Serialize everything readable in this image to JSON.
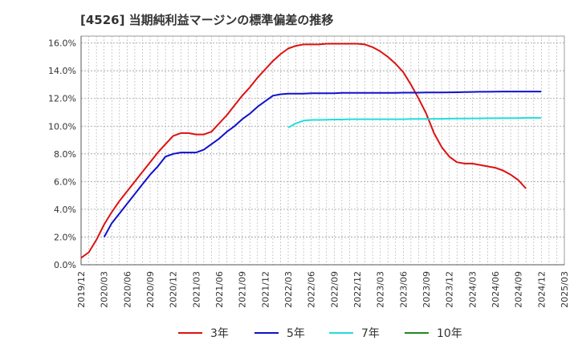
{
  "chart_data": {
    "type": "line",
    "title": "[4526]  当期純利益マージンの標準偏差の推移",
    "xlabel": "",
    "ylabel": "",
    "ylim": [
      0,
      16.5
    ],
    "yticks": [
      "0.0%",
      "2.0%",
      "4.0%",
      "6.0%",
      "8.0%",
      "10.0%",
      "12.0%",
      "14.0%",
      "16.0%"
    ],
    "ytick_values": [
      0,
      2,
      4,
      6,
      8,
      10,
      12,
      14,
      16
    ],
    "xticks": [
      "2019/12",
      "2020/03",
      "2020/06",
      "2020/09",
      "2020/12",
      "2021/03",
      "2021/06",
      "2021/09",
      "2021/12",
      "2022/03",
      "2022/06",
      "2022/09",
      "2022/12",
      "2023/03",
      "2023/06",
      "2023/09",
      "2023/12",
      "2024/03",
      "2024/06",
      "2024/09",
      "2024/12",
      "2025/03"
    ],
    "grid": true,
    "legend_position": "bottom",
    "series": [
      {
        "name": "3年",
        "color": "#dd1111",
        "x": [
          "2019/12",
          "2020/01",
          "2020/02",
          "2020/03",
          "2020/04",
          "2020/05",
          "2020/06",
          "2020/07",
          "2020/08",
          "2020/09",
          "2020/10",
          "2020/11",
          "2020/12",
          "2021/01",
          "2021/02",
          "2021/03",
          "2021/04",
          "2021/05",
          "2021/06",
          "2021/07",
          "2021/08",
          "2021/09",
          "2021/10",
          "2021/11",
          "2021/12",
          "2022/01",
          "2022/02",
          "2022/03",
          "2022/04",
          "2022/05",
          "2022/06",
          "2022/07",
          "2022/08",
          "2022/09",
          "2022/10",
          "2022/11",
          "2022/12",
          "2023/01",
          "2023/02",
          "2023/03",
          "2023/04",
          "2023/05",
          "2023/06",
          "2023/07",
          "2023/08",
          "2023/09",
          "2023/10",
          "2023/11",
          "2023/12",
          "2024/01",
          "2024/02",
          "2024/03",
          "2024/04",
          "2024/05",
          "2024/06",
          "2024/07",
          "2024/08",
          "2024/09",
          "2024/10",
          "2024/11",
          "2024/12"
        ],
        "values": [
          0.5,
          0.9,
          1.8,
          2.9,
          3.8,
          4.6,
          5.3,
          6.0,
          6.7,
          7.4,
          8.1,
          8.7,
          9.3,
          9.5,
          9.5,
          9.4,
          9.4,
          9.6,
          10.2,
          10.8,
          11.5,
          12.2,
          12.8,
          13.5,
          14.1,
          14.7,
          15.2,
          15.6,
          15.8,
          15.9,
          15.9,
          15.9,
          15.95,
          15.95,
          15.95,
          15.95,
          15.95,
          15.9,
          15.7,
          15.4,
          15.0,
          14.5,
          13.9,
          13.0,
          12.0,
          10.9,
          9.5,
          8.5,
          7.8,
          7.4,
          7.3,
          7.3,
          7.2,
          7.1,
          7.0,
          6.8,
          6.5,
          6.1,
          5.5,
          null,
          null
        ],
        "values_note": ""
      },
      {
        "name": "5年",
        "color": "#1111cc",
        "x": [
          "2020/03",
          "2020/04",
          "2020/05",
          "2020/06",
          "2020/07",
          "2020/08",
          "2020/09",
          "2020/10",
          "2020/11",
          "2020/12",
          "2021/01",
          "2021/02",
          "2021/03",
          "2021/04",
          "2021/05",
          "2021/06",
          "2021/07",
          "2021/08",
          "2021/09",
          "2021/10",
          "2021/11",
          "2021/12",
          "2022/01",
          "2022/02",
          "2022/03",
          "2022/04",
          "2022/05",
          "2022/06",
          "2022/07",
          "2022/08",
          "2022/09",
          "2022/10",
          "2022/11",
          "2022/12",
          "2023/01",
          "2023/02",
          "2023/03",
          "2023/04",
          "2023/05",
          "2023/06",
          "2023/07",
          "2023/08",
          "2023/09",
          "2023/10",
          "2023/11",
          "2023/12",
          "2024/01",
          "2024/02",
          "2024/03",
          "2024/04",
          "2024/05",
          "2024/06",
          "2024/07",
          "2024/08",
          "2024/09",
          "2024/10",
          "2024/11",
          "2024/12"
        ],
        "values": [
          2.0,
          3.0,
          3.7,
          4.4,
          5.1,
          5.8,
          6.5,
          7.1,
          7.8,
          8.0,
          8.1,
          8.1,
          8.1,
          8.3,
          8.7,
          9.1,
          9.6,
          10.0,
          10.5,
          10.9,
          11.4,
          11.8,
          12.2,
          12.3,
          12.35,
          12.35,
          12.35,
          12.37,
          12.38,
          12.38,
          12.38,
          12.4,
          12.4,
          12.4,
          12.4,
          12.4,
          12.4,
          12.4,
          12.4,
          12.42,
          12.42,
          12.42,
          12.43,
          12.43,
          12.43,
          12.44,
          12.45,
          12.46,
          12.47,
          12.48,
          12.48,
          12.49,
          12.5,
          12.5,
          12.5,
          12.5,
          12.5,
          12.5
        ]
      },
      {
        "name": "7年",
        "color": "#22dddd",
        "x": [
          "2022/03",
          "2022/04",
          "2022/05",
          "2022/06",
          "2022/07",
          "2022/08",
          "2022/09",
          "2022/10",
          "2022/11",
          "2022/12",
          "2023/01",
          "2023/02",
          "2023/03",
          "2023/04",
          "2023/05",
          "2023/06",
          "2023/07",
          "2023/08",
          "2023/09",
          "2023/10",
          "2023/11",
          "2023/12",
          "2024/01",
          "2024/02",
          "2024/03",
          "2024/04",
          "2024/05",
          "2024/06",
          "2024/07",
          "2024/08",
          "2024/09",
          "2024/10",
          "2024/11",
          "2024/12"
        ],
        "values": [
          9.9,
          10.2,
          10.4,
          10.45,
          10.45,
          10.47,
          10.48,
          10.48,
          10.5,
          10.5,
          10.5,
          10.5,
          10.5,
          10.5,
          10.5,
          10.5,
          10.52,
          10.52,
          10.52,
          10.53,
          10.53,
          10.54,
          10.55,
          10.55,
          10.56,
          10.56,
          10.57,
          10.57,
          10.58,
          10.58,
          10.58,
          10.6,
          10.6,
          10.6
        ]
      },
      {
        "name": "10年",
        "color": "#228822",
        "x": [],
        "values": []
      }
    ]
  }
}
